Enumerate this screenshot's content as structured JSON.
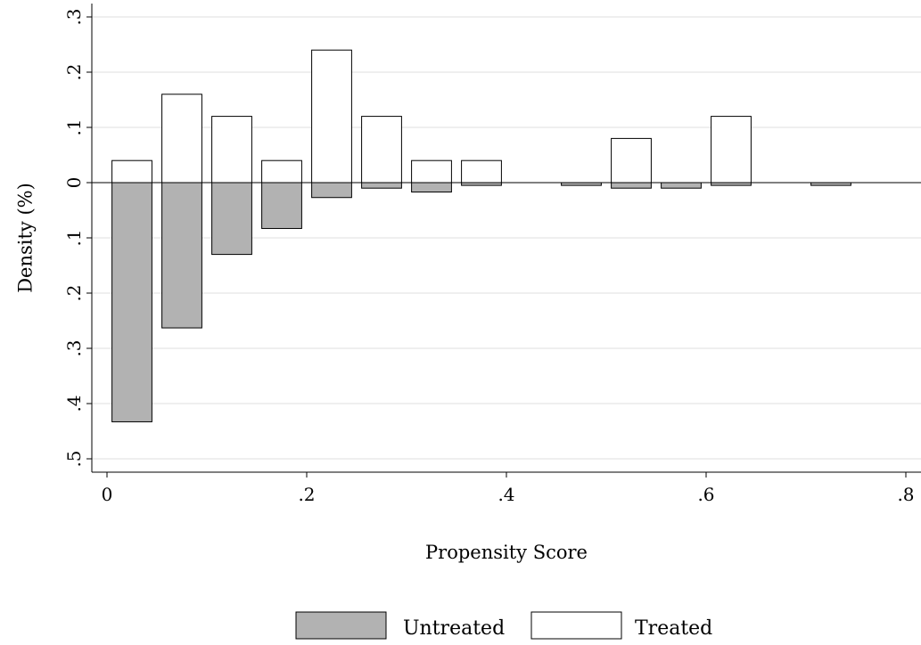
{
  "chart_data": {
    "type": "bar",
    "title": "",
    "xlabel": "Propensity Score",
    "ylabel": "Density (%)",
    "xlim": [
      -0.03,
      0.81
    ],
    "ylim": [
      -0.5,
      0.3
    ],
    "xticks": [
      {
        "value": 0,
        "label": "0"
      },
      {
        "value": 0.2,
        "label": ".2"
      },
      {
        "value": 0.4,
        "label": ".4"
      },
      {
        "value": 0.6,
        "label": ".6"
      },
      {
        "value": 0.8,
        "label": ".8"
      }
    ],
    "yticks": [
      {
        "value": 0.3,
        "label": ".3"
      },
      {
        "value": 0.2,
        "label": ".2"
      },
      {
        "value": 0.1,
        "label": ".1"
      },
      {
        "value": 0,
        "label": "0"
      },
      {
        "value": -0.1,
        "label": ".1"
      },
      {
        "value": -0.2,
        "label": ".2"
      },
      {
        "value": -0.3,
        "label": ".3"
      },
      {
        "value": -0.4,
        "label": ".4"
      },
      {
        "value": -0.5,
        "label": ".5"
      }
    ],
    "grid": true,
    "legend_position": "bottom",
    "bin_centers": [
      0.025,
      0.075,
      0.125,
      0.175,
      0.225,
      0.275,
      0.325,
      0.375,
      0.475,
      0.525,
      0.575,
      0.625,
      0.725
    ],
    "bar_width": 0.04,
    "series": [
      {
        "name": "Untreated",
        "color": "#b2b2b2",
        "values": [
          -0.433,
          -0.263,
          -0.13,
          -0.083,
          -0.027,
          -0.01,
          -0.017,
          -0.005,
          -0.005,
          -0.01,
          -0.01,
          -0.005,
          -0.005
        ]
      },
      {
        "name": "Treated",
        "color": "#ffffff",
        "values": [
          0.04,
          0.16,
          0.12,
          0.04,
          0.24,
          0.12,
          0.04,
          0.04,
          0,
          0.08,
          0,
          0.12,
          0
        ]
      }
    ]
  }
}
